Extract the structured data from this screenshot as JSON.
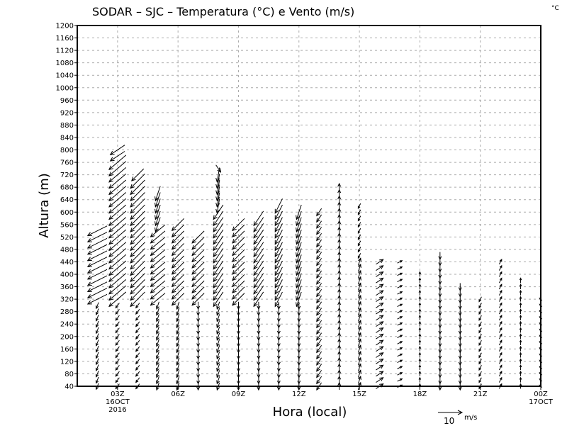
{
  "chart_data": {
    "type": "vector-profile",
    "title": "SODAR – SJC – Temperatura (°C) e Vento (m/s)",
    "corner_label": "°C",
    "xlabel": "Hora (local)",
    "ylabel": "Altura (m)",
    "xlim_hours": [
      1,
      24
    ],
    "ylim": [
      40,
      1200
    ],
    "y_ticks": [
      40,
      80,
      120,
      160,
      200,
      240,
      280,
      320,
      360,
      400,
      440,
      480,
      520,
      560,
      600,
      640,
      680,
      720,
      760,
      800,
      840,
      880,
      920,
      960,
      1000,
      1040,
      1080,
      1120,
      1160,
      1200
    ],
    "x_ticks": [
      {
        "hour": 3,
        "label": "03Z",
        "sub": [
          "16OCT",
          "2016"
        ]
      },
      {
        "hour": 6,
        "label": "06Z"
      },
      {
        "hour": 9,
        "label": "09Z"
      },
      {
        "hour": 12,
        "label": "12Z"
      },
      {
        "hour": 15,
        "label": "15Z"
      },
      {
        "hour": 18,
        "label": "18Z"
      },
      {
        "hour": 21,
        "label": "21Z"
      },
      {
        "hour": 24,
        "label": "00Z",
        "sub": [
          "17OCT"
        ]
      }
    ],
    "grid": true,
    "level_step_m": 20,
    "reference_vector": {
      "value": 10,
      "label": "10",
      "units": "m/s"
    },
    "profiles_note": "segments: [bottom_m, top_m, u_ms, v_ms]",
    "profiles": [
      {
        "hour": 2,
        "segments": [
          [
            40,
            300,
            -1,
            -2.5
          ],
          [
            320,
            540,
            -8,
            -4
          ]
        ]
      },
      {
        "hour": 3,
        "segments": [
          [
            40,
            300,
            -1.5,
            -2
          ],
          [
            320,
            760,
            -7,
            -6
          ],
          [
            780,
            800,
            -6,
            -4
          ]
        ]
      },
      {
        "hour": 4,
        "segments": [
          [
            40,
            300,
            -1.5,
            -2
          ],
          [
            320,
            700,
            -6,
            -6
          ],
          [
            720,
            720,
            -5,
            -5
          ]
        ]
      },
      {
        "hour": 5,
        "segments": [
          [
            40,
            300,
            -1,
            -3
          ],
          [
            320,
            540,
            -6,
            -5
          ],
          [
            560,
            660,
            -2,
            -6
          ]
        ]
      },
      {
        "hour": 6,
        "segments": [
          [
            40,
            300,
            -1,
            -3
          ],
          [
            320,
            560,
            -5,
            -5
          ]
        ]
      },
      {
        "hour": 7,
        "segments": [
          [
            40,
            300,
            0,
            -3
          ],
          [
            320,
            520,
            -5,
            -5
          ]
        ]
      },
      {
        "hour": 8,
        "segments": [
          [
            40,
            300,
            -1,
            -3
          ],
          [
            320,
            600,
            -4,
            -6
          ],
          [
            620,
            720,
            -1,
            -6
          ],
          [
            740,
            740,
            2,
            -3
          ]
        ]
      },
      {
        "hour": 9,
        "segments": [
          [
            40,
            300,
            0,
            -3
          ],
          [
            320,
            560,
            -5,
            -5
          ]
        ]
      },
      {
        "hour": 10,
        "segments": [
          [
            40,
            300,
            0,
            -3
          ],
          [
            320,
            580,
            -4,
            -6
          ]
        ]
      },
      {
        "hour": 11,
        "segments": [
          [
            40,
            300,
            0,
            -3
          ],
          [
            320,
            620,
            -3,
            -6
          ]
        ]
      },
      {
        "hour": 12,
        "segments": [
          [
            40,
            300,
            0,
            -3
          ],
          [
            320,
            600,
            -2,
            -6
          ]
        ]
      },
      {
        "hour": 13,
        "segments": [
          [
            40,
            600,
            -2,
            -3
          ]
        ]
      },
      {
        "hour": 14,
        "segments": [
          [
            40,
            680,
            0,
            3
          ]
        ]
      },
      {
        "hour": 15,
        "segments": [
          [
            40,
            440,
            1,
            3
          ],
          [
            460,
            620,
            -1,
            -2
          ]
        ]
      },
      {
        "hour": 16,
        "segments": [
          [
            40,
            440,
            3,
            2
          ]
        ]
      },
      {
        "hour": 17,
        "segments": [
          [
            40,
            440,
            2,
            1
          ]
        ]
      },
      {
        "hour": 18,
        "segments": [
          [
            40,
            400,
            0,
            2
          ]
        ]
      },
      {
        "hour": 19,
        "segments": [
          [
            40,
            460,
            0,
            -3
          ]
        ]
      },
      {
        "hour": 20,
        "segments": [
          [
            40,
            360,
            0,
            -3
          ]
        ]
      },
      {
        "hour": 21,
        "segments": [
          [
            40,
            320,
            -1,
            -2
          ]
        ]
      },
      {
        "hour": 22,
        "segments": [
          [
            40,
            440,
            1,
            2
          ]
        ]
      },
      {
        "hour": 23,
        "segments": [
          [
            40,
            380,
            0,
            2
          ]
        ]
      },
      {
        "hour": 24,
        "segments": [
          [
            40,
            320,
            -1,
            1
          ]
        ]
      }
    ]
  }
}
